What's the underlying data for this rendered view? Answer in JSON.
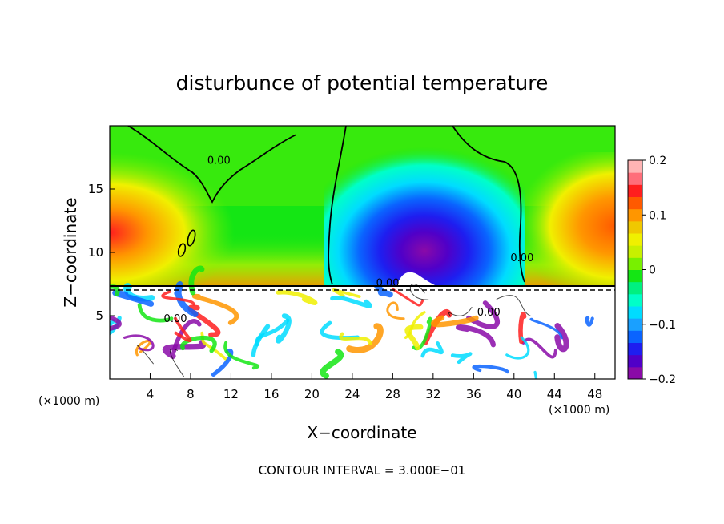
{
  "chart_data": {
    "type": "heatmap",
    "title": "disturbunce of potential temperature",
    "xlabel": "X−coordinate",
    "ylabel": "Z−coordinate",
    "x_unit": "(×1000 m)",
    "x_unit_right": "(×1000 m)",
    "xlim": [
      0,
      50
    ],
    "ylim": [
      0,
      20
    ],
    "x_ticks": [
      4,
      8,
      12,
      16,
      20,
      24,
      28,
      32,
      36,
      40,
      44,
      48
    ],
    "y_ticks": [
      5,
      10,
      15
    ],
    "colorbar": {
      "range": [
        -0.2,
        0.2
      ],
      "tick_values": [
        0.2,
        0.1,
        0,
        -0.1,
        -0.2
      ],
      "tick_labels": [
        "0.2",
        "0.1",
        "0",
        "−0.1",
        "−0.2"
      ],
      "colors": [
        "#8a0aa8",
        "#5000c8",
        "#1e1ef0",
        "#0a64ff",
        "#1aa0ff",
        "#00dcff",
        "#00ffc8",
        "#00f080",
        "#14e614",
        "#78f000",
        "#c8f000",
        "#f0f000",
        "#f0c800",
        "#ff9600",
        "#ff5a00",
        "#ff1e1e",
        "#ff6e7a",
        "#ffb4b4"
      ]
    },
    "contour_labels": [
      {
        "text": "0.00",
        "x": 10.8,
        "z": 17.0
      },
      {
        "text": "0.00",
        "x": 40.8,
        "z": 9.3
      },
      {
        "text": "0.00",
        "x": 27.5,
        "z": 7.3
      },
      {
        "text": "0.00",
        "x": 6.5,
        "z": 4.5
      },
      {
        "text": "0.00",
        "x": 37.5,
        "z": 5.0
      }
    ],
    "contour_interval_text": "CONTOUR INTERVAL =  3.000E−01"
  }
}
